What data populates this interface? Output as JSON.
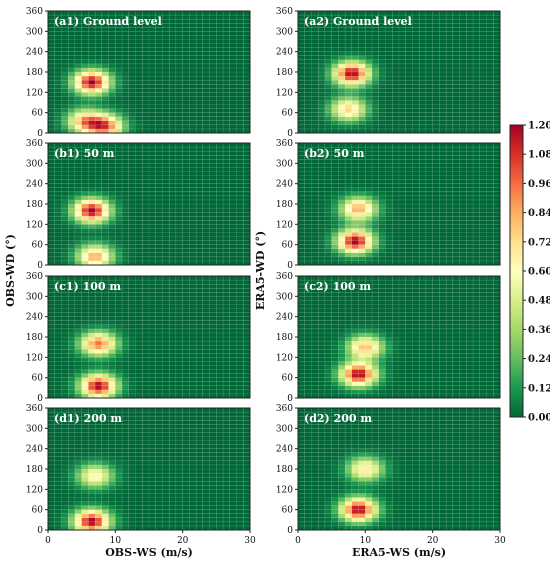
{
  "chart_data": {
    "type": "heatmap",
    "colorbar": {
      "range": [
        0.0,
        1.2
      ],
      "ticks": [
        "0.00",
        "0.12",
        "0.24",
        "0.36",
        "0.48",
        "0.60",
        "0.72",
        "0.84",
        "0.96",
        "1.08",
        "1.20"
      ],
      "colors": [
        "#006837",
        "#1a9850",
        "#66bd63",
        "#a6d96a",
        "#d9ef8b",
        "#ffffbf",
        "#fee08b",
        "#fdae61",
        "#f46d43",
        "#d73027",
        "#a50026"
      ]
    },
    "x_range": [
      0,
      30
    ],
    "y_range": [
      0,
      360
    ],
    "x_ticks": [
      "0",
      "10",
      "20",
      "30"
    ],
    "y_ticks": [
      "0",
      "60",
      "120",
      "180",
      "240",
      "300",
      "360"
    ],
    "grid_cells": {
      "ws_bin": 1,
      "wd_bin": 12
    },
    "columns": [
      {
        "xlabel": "OBS-WS (m/s)",
        "ylabel": "OBS-WD (°)"
      },
      {
        "xlabel": "ERA5-WS (m/s)",
        "ylabel": "ERA5-WD (°)"
      }
    ],
    "panels": [
      {
        "label": "(a1) Ground level",
        "row": 0,
        "col": 0,
        "peaks": [
          {
            "ws": 6.5,
            "wd": 150,
            "value": 1.2
          },
          {
            "ws": 8.5,
            "wd": 20,
            "value": 0.95
          },
          {
            "ws": 5.5,
            "wd": 35,
            "value": 0.8
          }
        ]
      },
      {
        "label": "(a2) Ground level",
        "row": 0,
        "col": 1,
        "peaks": [
          {
            "ws": 8,
            "wd": 175,
            "value": 1.2
          },
          {
            "ws": 7.5,
            "wd": 70,
            "value": 0.75
          }
        ]
      },
      {
        "label": "(b1) 50 m",
        "row": 1,
        "col": 0,
        "peaks": [
          {
            "ws": 6.5,
            "wd": 160,
            "value": 1.2
          },
          {
            "ws": 7,
            "wd": 25,
            "value": 0.85
          }
        ]
      },
      {
        "label": "(b2) 50 m",
        "row": 1,
        "col": 1,
        "peaks": [
          {
            "ws": 8.5,
            "wd": 70,
            "value": 1.2
          },
          {
            "ws": 9,
            "wd": 165,
            "value": 0.85
          }
        ]
      },
      {
        "label": "(c1) 100 m",
        "row": 2,
        "col": 0,
        "peaks": [
          {
            "ws": 7.5,
            "wd": 160,
            "value": 0.95
          },
          {
            "ws": 7.5,
            "wd": 35,
            "value": 1.2
          }
        ]
      },
      {
        "label": "(c2) 100 m",
        "row": 2,
        "col": 1,
        "peaks": [
          {
            "ws": 9,
            "wd": 70,
            "value": 1.2
          },
          {
            "ws": 10,
            "wd": 150,
            "value": 0.8
          }
        ]
      },
      {
        "label": "(d1) 200 m",
        "row": 3,
        "col": 0,
        "peaks": [
          {
            "ws": 6.5,
            "wd": 25,
            "value": 1.2
          },
          {
            "ws": 7,
            "wd": 160,
            "value": 0.65
          }
        ]
      },
      {
        "label": "(d2) 200 m",
        "row": 3,
        "col": 1,
        "peaks": [
          {
            "ws": 9,
            "wd": 60,
            "value": 1.2
          },
          {
            "ws": 10,
            "wd": 180,
            "value": 0.7
          }
        ]
      }
    ]
  }
}
